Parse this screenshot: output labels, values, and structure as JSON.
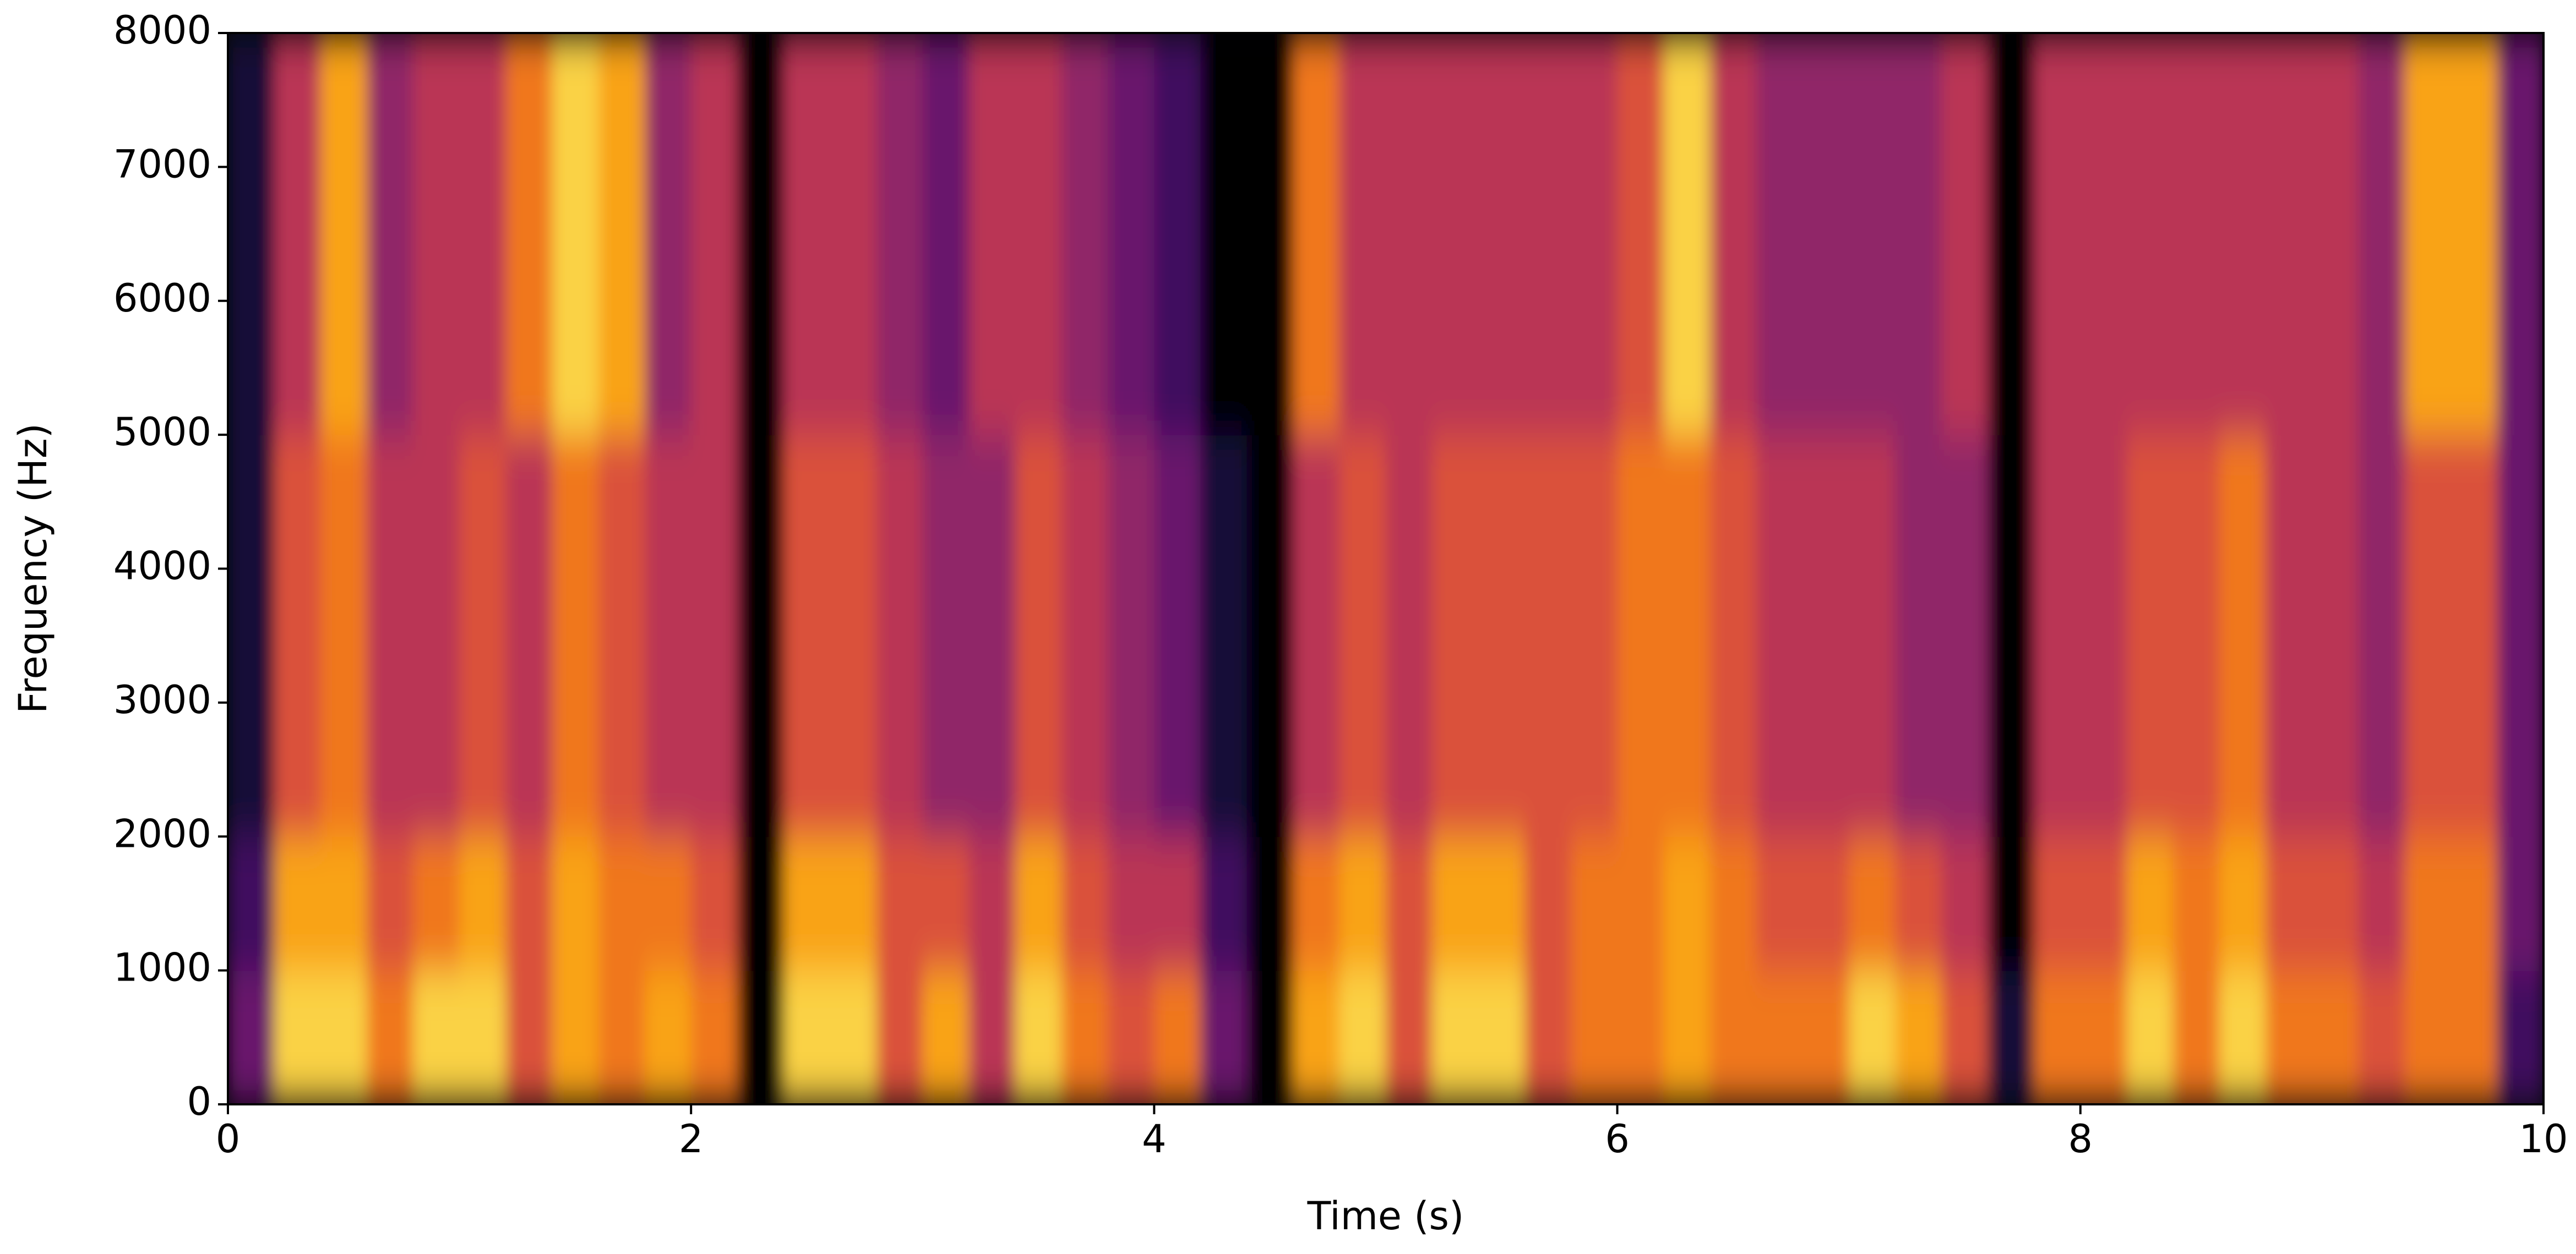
{
  "chart_data": {
    "type": "spectrogram",
    "xlabel": "Time (s)",
    "ylabel": "Frequency (Hz)",
    "xlim": [
      0,
      10
    ],
    "ylim": [
      0,
      8000
    ],
    "xticks": [
      0,
      2,
      4,
      6,
      8,
      10
    ],
    "yticks": [
      0,
      1000,
      2000,
      3000,
      4000,
      5000,
      6000,
      7000,
      8000
    ],
    "colormap": "inferno",
    "z": [
      [
        0.3,
        0.9,
        0.9,
        0.7,
        0.9,
        0.9,
        0.6,
        0.8,
        0.7,
        0.8,
        0.7,
        0,
        0.9,
        0.9,
        0.6,
        0.8,
        0.5,
        0.9,
        0.7,
        0.6,
        0.7,
        0.3,
        0,
        0.8,
        0.9,
        0.6,
        0.9,
        0.9,
        0.6,
        0.7,
        0.7,
        0.8,
        0.7,
        0.7,
        0.7,
        0.9,
        0.8,
        0.6,
        0.1,
        0.7,
        0.7,
        0.9,
        0.7,
        0.9,
        0.7,
        0.7,
        0.6,
        0.7,
        0.7,
        0.2
      ],
      [
        0.2,
        0.8,
        0.8,
        0.6,
        0.7,
        0.8,
        0.6,
        0.8,
        0.7,
        0.7,
        0.6,
        0,
        0.8,
        0.8,
        0.6,
        0.6,
        0.5,
        0.8,
        0.6,
        0.5,
        0.5,
        0.2,
        0,
        0.7,
        0.8,
        0.6,
        0.8,
        0.8,
        0.6,
        0.7,
        0.7,
        0.8,
        0.7,
        0.6,
        0.6,
        0.7,
        0.6,
        0.5,
        0,
        0.6,
        0.6,
        0.8,
        0.7,
        0.8,
        0.6,
        0.6,
        0.5,
        0.7,
        0.7,
        0.3
      ],
      [
        0.1,
        0.6,
        0.7,
        0.5,
        0.5,
        0.6,
        0.5,
        0.7,
        0.6,
        0.5,
        0.5,
        0,
        0.6,
        0.6,
        0.5,
        0.4,
        0.4,
        0.6,
        0.5,
        0.4,
        0.3,
        0.1,
        0,
        0.5,
        0.6,
        0.5,
        0.6,
        0.6,
        0.6,
        0.6,
        0.7,
        0.7,
        0.6,
        0.5,
        0.5,
        0.5,
        0.4,
        0.4,
        0,
        0.5,
        0.5,
        0.6,
        0.6,
        0.7,
        0.5,
        0.5,
        0.4,
        0.6,
        0.6,
        0.3
      ],
      [
        0.1,
        0.6,
        0.7,
        0.5,
        0.5,
        0.6,
        0.5,
        0.7,
        0.6,
        0.5,
        0.5,
        0,
        0.6,
        0.6,
        0.5,
        0.4,
        0.4,
        0.6,
        0.5,
        0.4,
        0.3,
        0.1,
        0,
        0.5,
        0.6,
        0.5,
        0.6,
        0.6,
        0.6,
        0.6,
        0.7,
        0.7,
        0.6,
        0.5,
        0.5,
        0.5,
        0.4,
        0.4,
        0,
        0.5,
        0.5,
        0.6,
        0.6,
        0.7,
        0.5,
        0.5,
        0.4,
        0.6,
        0.6,
        0.3
      ],
      [
        0.1,
        0.6,
        0.7,
        0.5,
        0.5,
        0.6,
        0.5,
        0.7,
        0.6,
        0.5,
        0.5,
        0,
        0.6,
        0.6,
        0.5,
        0.4,
        0.4,
        0.6,
        0.5,
        0.4,
        0.3,
        0.1,
        0,
        0.5,
        0.6,
        0.5,
        0.6,
        0.6,
        0.6,
        0.6,
        0.7,
        0.7,
        0.6,
        0.5,
        0.5,
        0.5,
        0.4,
        0.4,
        0,
        0.5,
        0.5,
        0.6,
        0.6,
        0.7,
        0.5,
        0.5,
        0.4,
        0.6,
        0.6,
        0.3
      ],
      [
        0.1,
        0.5,
        0.8,
        0.4,
        0.5,
        0.5,
        0.7,
        0.9,
        0.8,
        0.4,
        0.5,
        0,
        0.5,
        0.5,
        0.4,
        0.3,
        0.5,
        0.5,
        0.4,
        0.3,
        0.2,
        0,
        0,
        0.7,
        0.5,
        0.5,
        0.5,
        0.5,
        0.5,
        0.5,
        0.6,
        0.9,
        0.5,
        0.4,
        0.4,
        0.4,
        0.4,
        0.5,
        0,
        0.5,
        0.5,
        0.5,
        0.5,
        0.5,
        0.5,
        0.5,
        0.4,
        0.8,
        0.8,
        0.3
      ],
      [
        0.1,
        0.5,
        0.8,
        0.4,
        0.5,
        0.5,
        0.7,
        0.9,
        0.8,
        0.4,
        0.5,
        0,
        0.5,
        0.5,
        0.4,
        0.3,
        0.5,
        0.5,
        0.4,
        0.3,
        0.2,
        0,
        0,
        0.7,
        0.5,
        0.5,
        0.5,
        0.5,
        0.5,
        0.5,
        0.6,
        0.9,
        0.5,
        0.4,
        0.4,
        0.4,
        0.4,
        0.5,
        0,
        0.5,
        0.5,
        0.5,
        0.5,
        0.5,
        0.5,
        0.5,
        0.4,
        0.8,
        0.8,
        0.3
      ],
      [
        0.1,
        0.5,
        0.8,
        0.4,
        0.5,
        0.5,
        0.7,
        0.9,
        0.8,
        0.4,
        0.5,
        0,
        0.5,
        0.5,
        0.4,
        0.3,
        0.5,
        0.5,
        0.4,
        0.3,
        0.2,
        0,
        0,
        0.7,
        0.5,
        0.5,
        0.5,
        0.5,
        0.5,
        0.5,
        0.6,
        0.9,
        0.5,
        0.4,
        0.4,
        0.4,
        0.4,
        0.5,
        0,
        0.5,
        0.5,
        0.5,
        0.5,
        0.5,
        0.5,
        0.5,
        0.4,
        0.8,
        0.8,
        0.3
      ]
    ]
  }
}
